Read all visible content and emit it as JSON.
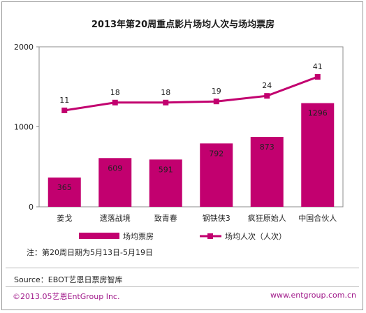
{
  "title": "2013年第20周重点影片场均人次与场均票房",
  "chart_data": {
    "type": "bar",
    "categories": [
      "姜戈",
      "遗落战境",
      "致青春",
      "钢铁侠3",
      "疯狂原始人",
      "中国合伙人"
    ],
    "y_ticks": [
      "0",
      "1000",
      "2000"
    ],
    "ylim": [
      0,
      2000
    ],
    "series": [
      {
        "name": "场均票房",
        "type": "bar",
        "color": "#c2006f",
        "values": [
          365,
          609,
          591,
          792,
          873,
          1296
        ]
      },
      {
        "name": "场均人次（人次）",
        "type": "line",
        "color": "#c2006f",
        "values": [
          11,
          18,
          18,
          19,
          24,
          41
        ]
      }
    ],
    "grid": false,
    "legend": "bottom"
  },
  "note": "注：第20周日期为5月13日-5月19日",
  "source": "Source：EBOT艺恩日票房智库",
  "copyright": "©2013.05艺恩EntGroup Inc.",
  "website": "www.entgroup.com.cn"
}
